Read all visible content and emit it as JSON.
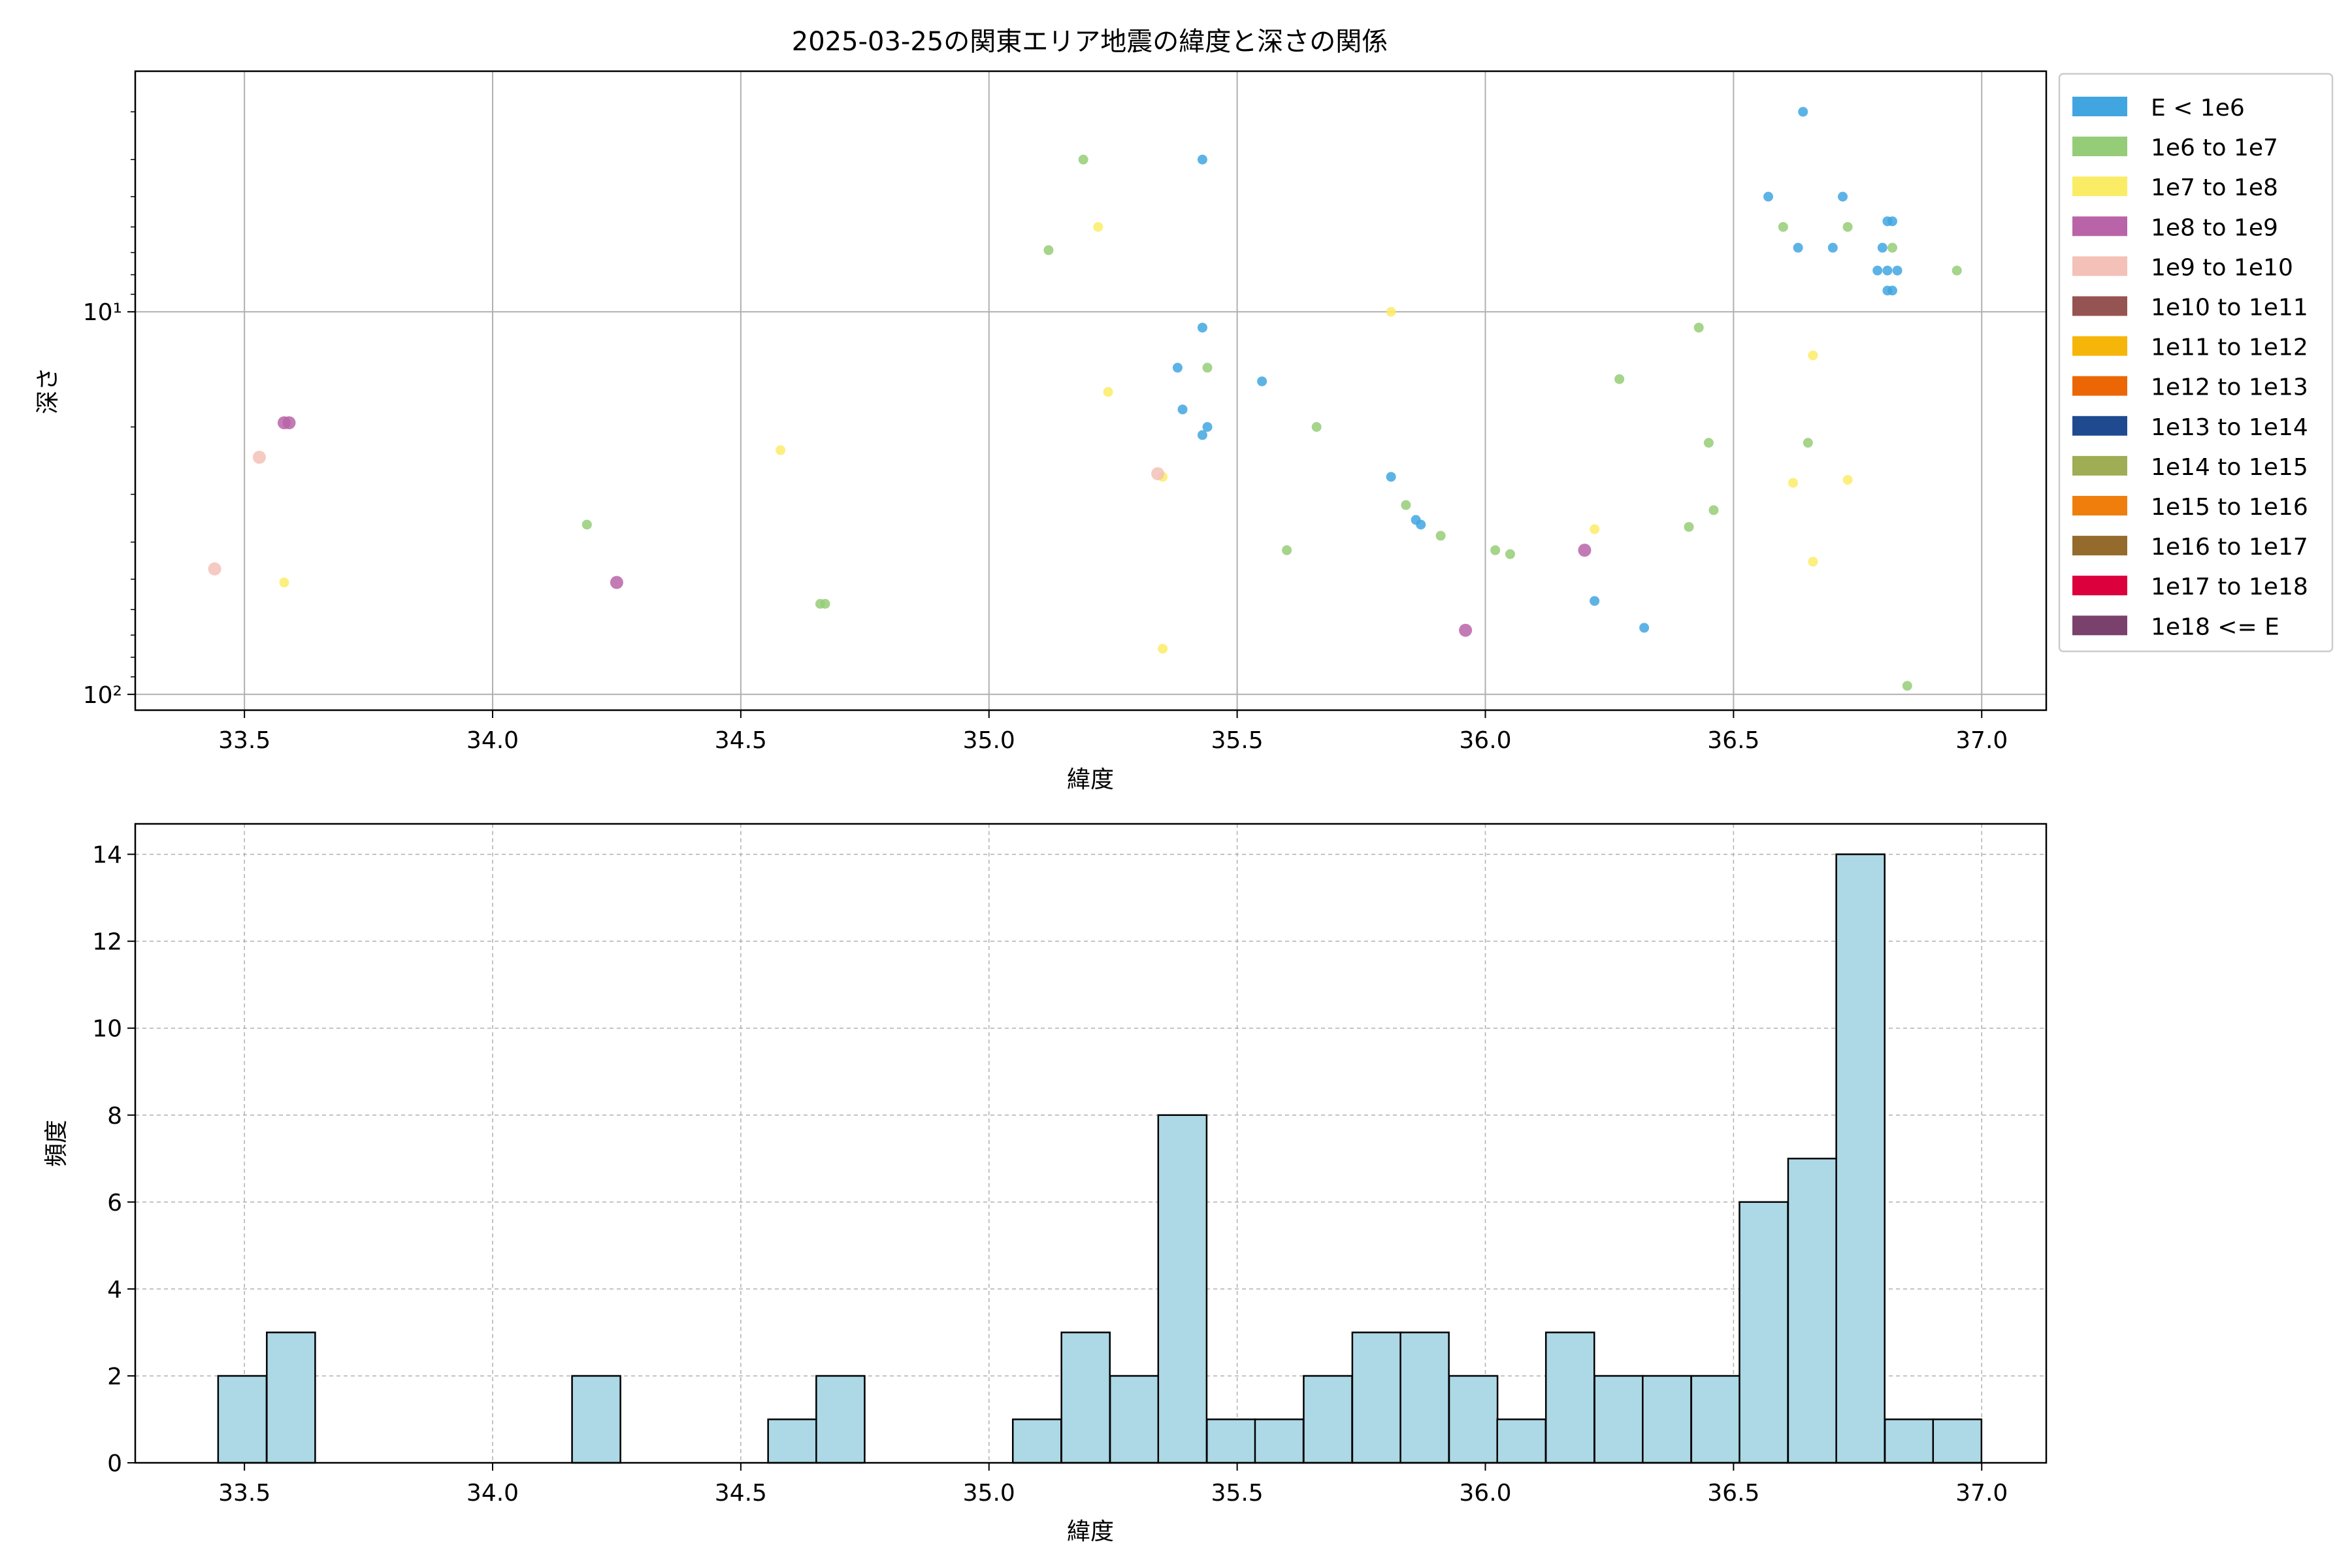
{
  "chart_data": [
    {
      "type": "scatter",
      "title": "2025-03-25の関東エリア地震の緯度と深さの関係",
      "xlabel": "緯度",
      "ylabel": "深さ",
      "xlim": [
        33.28,
        37.13
      ],
      "ylim": [
        110,
        2.35
      ],
      "y_scale": "log",
      "y_inverted": true,
      "grid": true,
      "legend_position": "outside-right",
      "x_ticks": [
        "33.5",
        "34.0",
        "34.5",
        "35.0",
        "35.5",
        "36.0",
        "36.5",
        "37.0"
      ],
      "y_ticks": [
        {
          "value": 10,
          "label": "10¹"
        },
        {
          "value": 100,
          "label": "10²"
        }
      ],
      "legend": [
        {
          "label": "E < 1e6",
          "color": "#41a6e0"
        },
        {
          "label": "1e6 to 1e7",
          "color": "#95cc77"
        },
        {
          "label": "1e7 to 1e8",
          "color": "#fbec66"
        },
        {
          "label": "1e8 to 1e9",
          "color": "#b964a8"
        },
        {
          "label": "1e9 to 1e10",
          "color": "#f3c1b7"
        },
        {
          "label": "1e10 to 1e11",
          "color": "#955451"
        },
        {
          "label": "1e11 to 1e12",
          "color": "#f6b509"
        },
        {
          "label": "1e12 to 1e13",
          "color": "#ec6605"
        },
        {
          "label": "1e13 to 1e14",
          "color": "#1f4a8f"
        },
        {
          "label": "1e14 to 1e15",
          "color": "#9fad55"
        },
        {
          "label": "1e15 to 1e16",
          "color": "#ef7e0d"
        },
        {
          "label": "1e16 to 1e17",
          "color": "#946b2c"
        },
        {
          "label": "1e17 to 1e18",
          "color": "#dc003c"
        },
        {
          "label": "1e18 <= E",
          "color": "#7a416c"
        }
      ],
      "points": [
        {
          "x": 36.64,
          "y": 3.0,
          "c": 0
        },
        {
          "x": 35.43,
          "y": 4.0,
          "c": 0
        },
        {
          "x": 36.57,
          "y": 5.0,
          "c": 0
        },
        {
          "x": 36.72,
          "y": 5.0,
          "c": 0
        },
        {
          "x": 36.81,
          "y": 5.8,
          "c": 0
        },
        {
          "x": 36.82,
          "y": 5.8,
          "c": 0
        },
        {
          "x": 36.63,
          "y": 6.8,
          "c": 0
        },
        {
          "x": 36.7,
          "y": 6.8,
          "c": 0
        },
        {
          "x": 36.8,
          "y": 6.8,
          "c": 0
        },
        {
          "x": 36.79,
          "y": 7.8,
          "c": 0
        },
        {
          "x": 36.81,
          "y": 7.8,
          "c": 0
        },
        {
          "x": 36.83,
          "y": 7.8,
          "c": 0
        },
        {
          "x": 36.81,
          "y": 8.8,
          "c": 0
        },
        {
          "x": 36.82,
          "y": 8.8,
          "c": 0
        },
        {
          "x": 35.43,
          "y": 11.0,
          "c": 0
        },
        {
          "x": 35.38,
          "y": 14.0,
          "c": 0
        },
        {
          "x": 35.55,
          "y": 15.2,
          "c": 0
        },
        {
          "x": 35.39,
          "y": 18.0,
          "c": 0
        },
        {
          "x": 35.44,
          "y": 20.0,
          "c": 0
        },
        {
          "x": 35.43,
          "y": 21.0,
          "c": 0
        },
        {
          "x": 35.81,
          "y": 27.0,
          "c": 0
        },
        {
          "x": 35.86,
          "y": 35.0,
          "c": 0
        },
        {
          "x": 35.87,
          "y": 36.0,
          "c": 0
        },
        {
          "x": 36.22,
          "y": 57.0,
          "c": 0
        },
        {
          "x": 36.32,
          "y": 67.0,
          "c": 0
        },
        {
          "x": 35.19,
          "y": 4.0,
          "c": 1
        },
        {
          "x": 36.6,
          "y": 6.0,
          "c": 1
        },
        {
          "x": 36.73,
          "y": 6.0,
          "c": 1
        },
        {
          "x": 35.12,
          "y": 6.9,
          "c": 1
        },
        {
          "x": 36.82,
          "y": 6.8,
          "c": 1
        },
        {
          "x": 36.95,
          "y": 7.8,
          "c": 1
        },
        {
          "x": 36.43,
          "y": 11.0,
          "c": 1
        },
        {
          "x": 35.44,
          "y": 14.0,
          "c": 1
        },
        {
          "x": 36.27,
          "y": 15.0,
          "c": 1
        },
        {
          "x": 35.66,
          "y": 20.0,
          "c": 1
        },
        {
          "x": 36.45,
          "y": 22.0,
          "c": 1
        },
        {
          "x": 36.65,
          "y": 22.0,
          "c": 1
        },
        {
          "x": 34.19,
          "y": 36.0,
          "c": 1
        },
        {
          "x": 35.84,
          "y": 32.0,
          "c": 1
        },
        {
          "x": 36.46,
          "y": 33.0,
          "c": 1
        },
        {
          "x": 36.41,
          "y": 36.5,
          "c": 1
        },
        {
          "x": 35.91,
          "y": 38.5,
          "c": 1
        },
        {
          "x": 35.6,
          "y": 42.0,
          "c": 1
        },
        {
          "x": 36.02,
          "y": 42.0,
          "c": 1
        },
        {
          "x": 36.05,
          "y": 43.0,
          "c": 1
        },
        {
          "x": 34.66,
          "y": 58.0,
          "c": 1
        },
        {
          "x": 34.67,
          "y": 58.0,
          "c": 1
        },
        {
          "x": 36.85,
          "y": 95.0,
          "c": 1
        },
        {
          "x": 35.22,
          "y": 6.0,
          "c": 2
        },
        {
          "x": 35.81,
          "y": 10.0,
          "c": 2
        },
        {
          "x": 36.66,
          "y": 13.0,
          "c": 2
        },
        {
          "x": 35.24,
          "y": 16.2,
          "c": 2
        },
        {
          "x": 34.58,
          "y": 23.0,
          "c": 2
        },
        {
          "x": 35.35,
          "y": 27.0,
          "c": 2
        },
        {
          "x": 36.62,
          "y": 28.0,
          "c": 2
        },
        {
          "x": 36.73,
          "y": 27.5,
          "c": 2
        },
        {
          "x": 36.22,
          "y": 37.0,
          "c": 2
        },
        {
          "x": 36.66,
          "y": 45.0,
          "c": 2
        },
        {
          "x": 33.58,
          "y": 51.0,
          "c": 2
        },
        {
          "x": 35.35,
          "y": 76.0,
          "c": 2
        },
        {
          "x": 33.58,
          "y": 19.5,
          "c": 3
        },
        {
          "x": 33.59,
          "y": 19.5,
          "c": 3
        },
        {
          "x": 36.2,
          "y": 42.0,
          "c": 3
        },
        {
          "x": 34.25,
          "y": 51.0,
          "c": 3
        },
        {
          "x": 35.96,
          "y": 68.0,
          "c": 3
        },
        {
          "x": 33.53,
          "y": 24.0,
          "c": 4
        },
        {
          "x": 35.34,
          "y": 26.5,
          "c": 4
        },
        {
          "x": 33.44,
          "y": 47.0,
          "c": 4
        }
      ]
    },
    {
      "type": "bar",
      "xlabel": "緯度",
      "ylabel": "頻度",
      "xlim": [
        33.28,
        37.13
      ],
      "ylim": [
        0,
        14.7
      ],
      "grid": true,
      "bin_width": 0.0975,
      "x_ticks": [
        "33.5",
        "34.0",
        "34.5",
        "35.0",
        "35.5",
        "36.0",
        "36.5",
        "37.0"
      ],
      "y_ticks": [
        "0",
        "2",
        "4",
        "6",
        "8",
        "10",
        "12",
        "14"
      ],
      "bins": [
        {
          "x0": 33.447,
          "count": 2
        },
        {
          "x0": 33.545,
          "count": 3
        },
        {
          "x0": 34.16,
          "count": 2
        },
        {
          "x0": 34.555,
          "count": 1
        },
        {
          "x0": 34.652,
          "count": 2
        },
        {
          "x0": 35.048,
          "count": 1
        },
        {
          "x0": 35.146,
          "count": 3
        },
        {
          "x0": 35.244,
          "count": 2
        },
        {
          "x0": 35.341,
          "count": 8
        },
        {
          "x0": 35.439,
          "count": 1
        },
        {
          "x0": 35.536,
          "count": 1
        },
        {
          "x0": 35.634,
          "count": 2
        },
        {
          "x0": 35.732,
          "count": 3
        },
        {
          "x0": 35.829,
          "count": 3
        },
        {
          "x0": 35.927,
          "count": 2
        },
        {
          "x0": 36.024,
          "count": 1
        },
        {
          "x0": 36.122,
          "count": 3
        },
        {
          "x0": 36.22,
          "count": 2
        },
        {
          "x0": 36.317,
          "count": 2
        },
        {
          "x0": 36.415,
          "count": 2
        },
        {
          "x0": 36.512,
          "count": 6
        },
        {
          "x0": 36.61,
          "count": 7
        },
        {
          "x0": 36.707,
          "count": 14
        },
        {
          "x0": 36.805,
          "count": 1
        },
        {
          "x0": 36.902,
          "count": 1
        }
      ],
      "bar_color": "#add8e6"
    }
  ]
}
